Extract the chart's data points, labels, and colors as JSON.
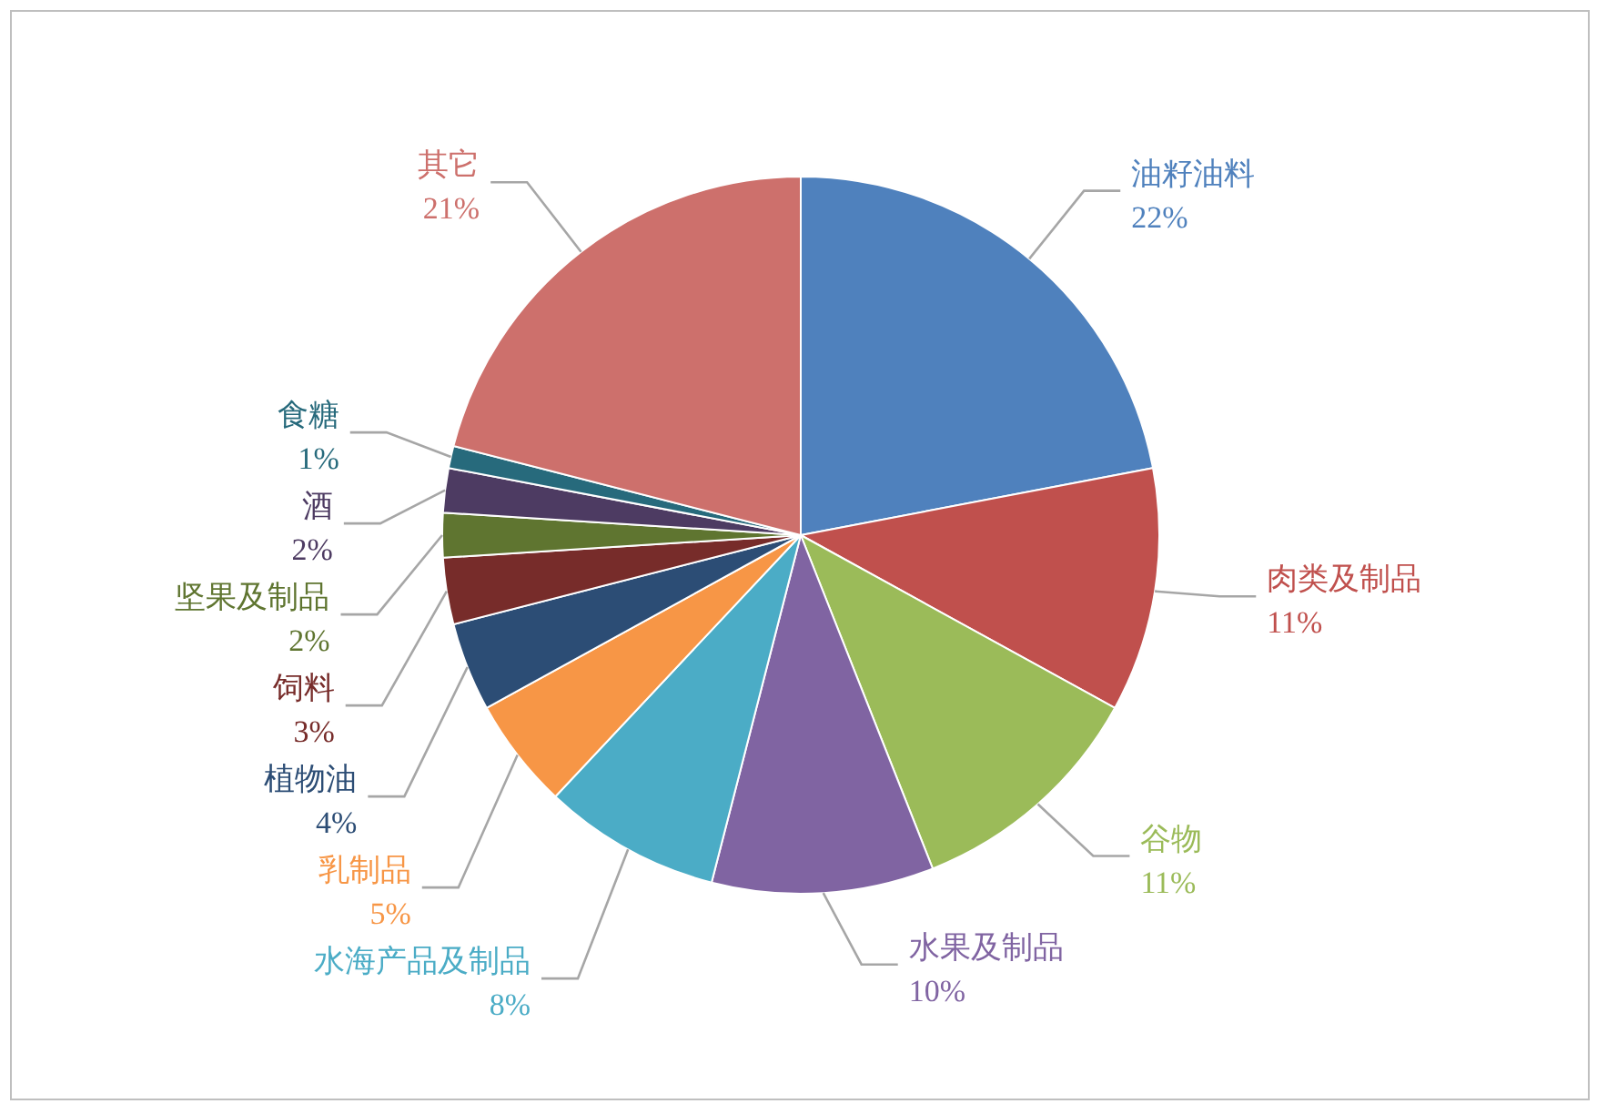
{
  "chart_data": {
    "type": "pie",
    "categories": [
      "油籽油料",
      "肉类及制品",
      "谷物",
      "水果及制品",
      "水海产品及制品",
      "乳制品",
      "植物油",
      "饲料",
      "坚果及制品",
      "酒",
      "食糖",
      "其它"
    ],
    "values": [
      22,
      11,
      11,
      10,
      8,
      5,
      4,
      3,
      2,
      2,
      1,
      21
    ],
    "colors": [
      "#4f81bd",
      "#c0504d",
      "#9bbb59",
      "#8064a2",
      "#4bacc6",
      "#f79646",
      "#2c4d75",
      "#772c2a",
      "#5f7530",
      "#4d3b62",
      "#276a7c",
      "#cd706c"
    ],
    "value_labels": [
      "22%",
      "11%",
      "11%",
      "10%",
      "8%",
      "5%",
      "4%",
      "3%",
      "2%",
      "2%",
      "1%",
      "21%"
    ]
  }
}
